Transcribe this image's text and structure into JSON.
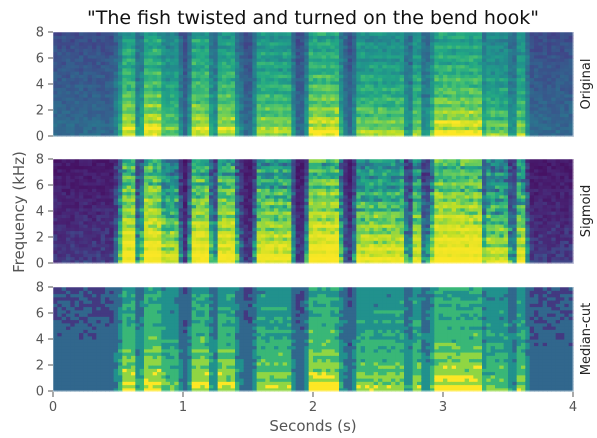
{
  "chart_data": {
    "type": "heatmap",
    "title": "\"The fish twisted and turned on the bend hook\"",
    "xlabel": "Seconds (s)",
    "ylabel": "Frequency (kHz)",
    "xlim": [
      0,
      4
    ],
    "ylim": [
      0,
      8
    ],
    "x_ticks": [
      "0",
      "1",
      "2",
      "3",
      "4"
    ],
    "y_ticks": [
      "0",
      "2",
      "4",
      "6",
      "8"
    ],
    "colormap": "viridis",
    "grid": false,
    "panels": [
      {
        "label": "Original"
      },
      {
        "label": "Sigmoid"
      },
      {
        "label": "Median-cut"
      }
    ],
    "speech_bursts": [
      {
        "start": 0.53,
        "end": 0.62,
        "level": 0.9
      },
      {
        "start": 0.7,
        "end": 0.82,
        "level": 0.95
      },
      {
        "start": 0.85,
        "end": 0.95,
        "level": 0.6
      },
      {
        "start": 1.08,
        "end": 1.2,
        "level": 0.9
      },
      {
        "start": 1.28,
        "end": 1.4,
        "level": 0.85
      },
      {
        "start": 1.58,
        "end": 1.82,
        "level": 0.75
      },
      {
        "start": 1.98,
        "end": 2.2,
        "level": 0.95
      },
      {
        "start": 2.35,
        "end": 2.7,
        "level": 0.7
      },
      {
        "start": 2.78,
        "end": 2.82,
        "level": 0.7
      },
      {
        "start": 2.92,
        "end": 3.3,
        "level": 0.95
      },
      {
        "start": 3.35,
        "end": 3.5,
        "level": 0.6
      },
      {
        "start": 3.58,
        "end": 3.62,
        "level": 0.7
      }
    ]
  }
}
